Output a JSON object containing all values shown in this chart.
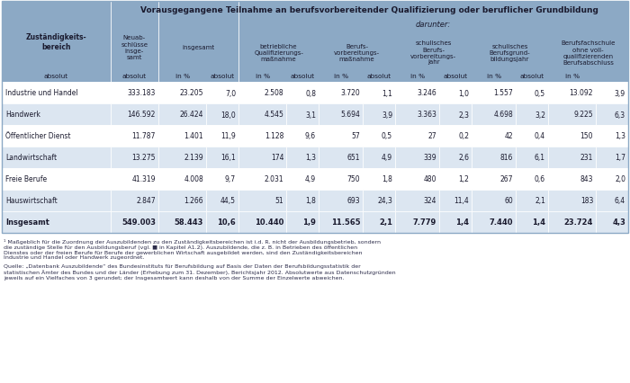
{
  "title": "Vorausgegangene Teilnahme an berufsvorbereitender Qualifizierung oder beruflicher Grundbildung",
  "col_headers_level1": [
    "Neuab-\nschlüsse\ninsge-\nsamt",
    "insgesamt",
    "betriebliche\nQualifizierungs-\nmaßnahme",
    "Berufs-\nvorbereitungs-\nmaßnahme",
    "schulisches\nBerufs-\nvorbereitungs-\njahr",
    "schulisches\nBerufsgrund-\nbildungsjahr",
    "Berufsfachschule\nohne voll-\nqualifizierenden\nBerufsabschluss"
  ],
  "row_header": "Zuständigkeits-\nbereich",
  "sub_headers": [
    "absolut",
    "absolut",
    "in %",
    "absolut",
    "in %",
    "absolut",
    "in %",
    "absolut",
    "in %",
    "absolut",
    "in %",
    "absolut",
    "in %"
  ],
  "rows": [
    [
      "Industrie und Handel",
      "333.183",
      "23.205",
      "7,0",
      "2.508",
      "0,8",
      "3.720",
      "1,1",
      "3.246",
      "1,0",
      "1.557",
      "0,5",
      "13.092",
      "3,9"
    ],
    [
      "Handwerk",
      "146.592",
      "26.424",
      "18,0",
      "4.545",
      "3,1",
      "5.694",
      "3,9",
      "3.363",
      "2,3",
      "4.698",
      "3,2",
      "9.225",
      "6,3"
    ],
    [
      "Öffentlicher Dienst",
      "11.787",
      "1.401",
      "11,9",
      "1.128",
      "9,6",
      "57",
      "0,5",
      "27",
      "0,2",
      "42",
      "0,4",
      "150",
      "1,3"
    ],
    [
      "Landwirtschaft",
      "13.275",
      "2.139",
      "16,1",
      "174",
      "1,3",
      "651",
      "4,9",
      "339",
      "2,6",
      "816",
      "6,1",
      "231",
      "1,7"
    ],
    [
      "Freie Berufe",
      "41.319",
      "4.008",
      "9,7",
      "2.031",
      "4,9",
      "750",
      "1,8",
      "480",
      "1,2",
      "267",
      "0,6",
      "843",
      "2,0"
    ],
    [
      "Hauswirtschaft",
      "2.847",
      "1.266",
      "44,5",
      "51",
      "1,8",
      "693",
      "24,3",
      "324",
      "11,4",
      "60",
      "2,1",
      "183",
      "6,4"
    ]
  ],
  "total_row": [
    "Insgesamt",
    "549.003",
    "58.443",
    "10,6",
    "10.440",
    "1,9",
    "11.565",
    "2,1",
    "7.779",
    "1,4",
    "7.440",
    "1,4",
    "23.724",
    "4,3"
  ],
  "footnote1": "¹ Maßgeblich für die Zuordnung der Auszubildenden zu den Zuständigkeitsbereichen ist i.d. R. nicht der Ausbildungsbetrieb, sondern die zuständige Stelle für den Ausbildungsberuf (vgl. ■ in Kapitel A1.2). Auszubildende, die z. B. in Betrieben des öffentlichen Dienstes oder der freien Berufe für Berufe der gewerblichen Wirtschaft ausgebildet werden, sind den Zuständigkeitsbereichen Industrie und Handel oder Handwerk zugeordnet.",
  "footnote2": "Quelle: „Datenbank Auszubildende“ des Bundesinstituts für Berufsbildung auf Basis der Daten der Berufsbildungsstatistik der statistischen Ämter des Bundes und der Länder (Erhebung zum 31. Dezember), Berichtsjahr 2012. Absolutwerte aus Datenschutzgründen jeweils auf ein Vielfaches von 3 gerundet; der Insgesamtwert kann deshalb von der Summe der Einzelwerte abweichen.",
  "header_bg": "#8ca9c5",
  "row_bg_white": "#ffffff",
  "row_bg_blue": "#dce6f1",
  "total_bg": "#dce6f1",
  "border_color": "#ffffff",
  "text_dark": "#1a1a2e"
}
